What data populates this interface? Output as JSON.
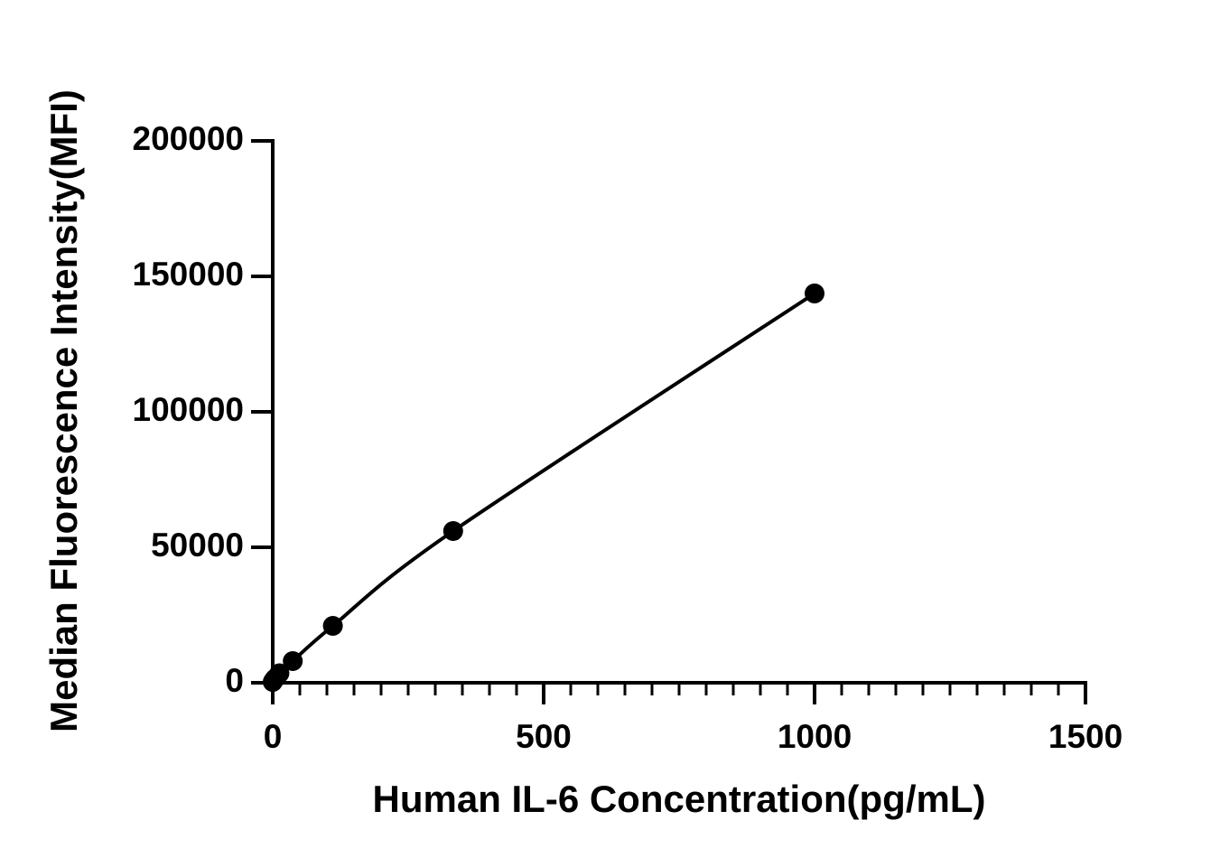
{
  "chart_data": {
    "type": "scatter",
    "x_label": "Human IL-6 Concentration(pg/mL)",
    "y_label": "Median Fluorescence Intensity(MFI)",
    "series": [
      {
        "color": "#000000",
        "x": [
          0,
          1.37,
          4.12,
          12.3,
          37,
          111,
          333,
          1000
        ],
        "values": [
          300,
          800,
          1500,
          3500,
          8000,
          21000,
          56000,
          143700
        ]
      }
    ],
    "xlim": [
      0,
      1500
    ],
    "xticks": [
      0,
      500,
      1000,
      1500
    ],
    "x_minor_step": 50,
    "ylim": [
      0,
      200000
    ],
    "yticks": [
      0,
      50000,
      100000,
      150000,
      200000
    ],
    "fit_line": true
  }
}
